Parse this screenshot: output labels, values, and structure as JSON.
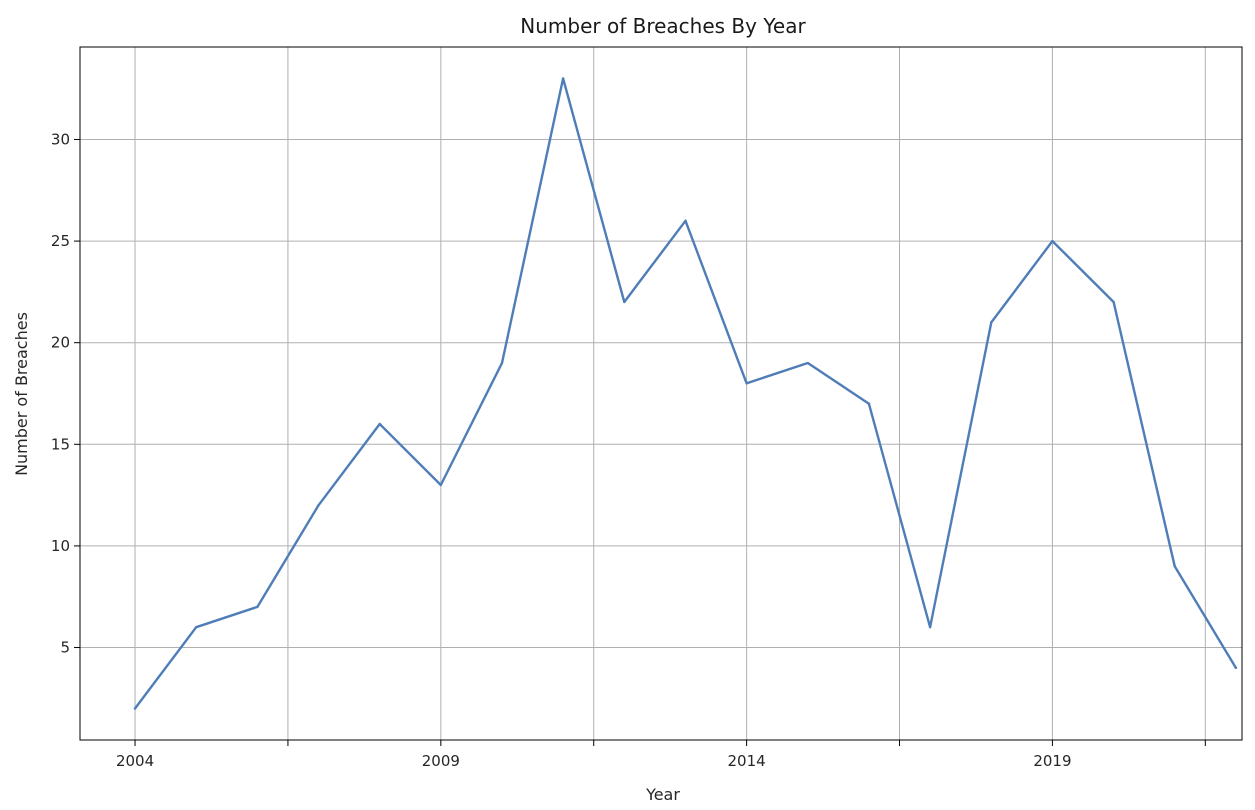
{
  "chart_data": {
    "type": "line",
    "title": "Number of Breaches By Year",
    "xlabel": "Year",
    "ylabel": "Number of Breaches",
    "x": [
      2004,
      2005,
      2006,
      2007,
      2008,
      2009,
      2010,
      2011,
      2012,
      2013,
      2014,
      2015,
      2016,
      2017,
      2018,
      2019,
      2020,
      2021,
      2022
    ],
    "series": [
      {
        "values": [
          2,
          6,
          7,
          12,
          16,
          13,
          19,
          33,
          22,
          26,
          18,
          19,
          17,
          6,
          21,
          25,
          22,
          9,
          4
        ]
      }
    ],
    "xlim": [
      2003.1,
      2022.1
    ],
    "ylim": [
      0.45,
      34.55
    ],
    "x_gridlines": [
      2004,
      2006.5,
      2009,
      2011.5,
      2014,
      2016.5,
      2019,
      2021.5
    ],
    "x_tick_labels": [
      "2004",
      "2009",
      "2014",
      "2019"
    ],
    "y_ticks": [
      5,
      10,
      15,
      20,
      25,
      30
    ],
    "y_tick_labels": [
      "5",
      "10",
      "15",
      "20",
      "25",
      "30"
    ],
    "grid": true,
    "line_color": "#4f7db8"
  }
}
